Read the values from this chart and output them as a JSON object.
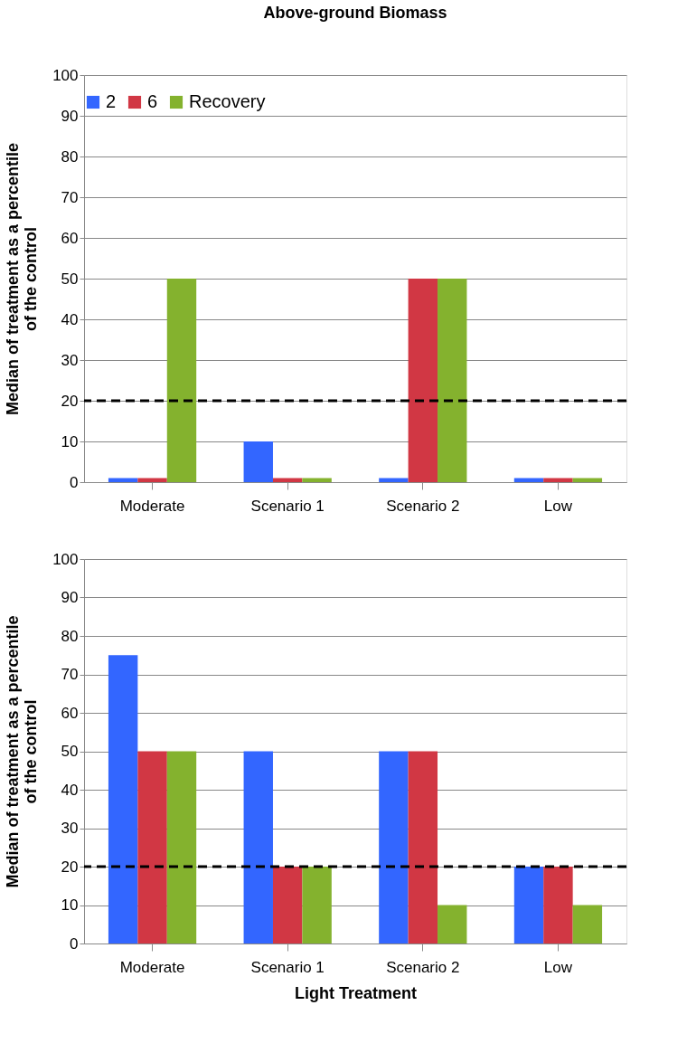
{
  "chart_data": [
    {
      "type": "bar",
      "title": "Above-ground Biomass",
      "ylabel": "Median of treatment as a percentile\nof the control",
      "categories": [
        "Moderate",
        "Scenario 1",
        "Scenario 2",
        "Low"
      ],
      "series": [
        {
          "name": "2",
          "color": "#3366ff",
          "values": [
            1,
            10,
            1,
            1
          ]
        },
        {
          "name": "6",
          "color": "#d13744",
          "values": [
            1,
            1,
            50,
            1
          ]
        },
        {
          "name": "Recovery",
          "color": "#84b22e",
          "values": [
            50,
            1,
            50,
            1
          ]
        }
      ],
      "ylim": [
        0,
        100
      ],
      "yticks": [
        0,
        10,
        20,
        30,
        40,
        50,
        60,
        70,
        80,
        90,
        100
      ],
      "grid": "y",
      "legend": "top",
      "ref_lines": [
        {
          "axis": "y",
          "value": 20,
          "color": "#000000",
          "line_style": "dashed"
        }
      ]
    },
    {
      "type": "bar",
      "xlabel": "Light Treatment",
      "ylabel": "Median of treatment as a percentile\nof the control",
      "categories": [
        "Moderate",
        "Scenario 1",
        "Scenario 2",
        "Low"
      ],
      "series": [
        {
          "color": "#3366ff",
          "values": [
            75,
            50,
            50,
            20
          ]
        },
        {
          "color": "#d13744",
          "values": [
            50,
            20,
            50,
            20
          ]
        },
        {
          "color": "#84b22e",
          "values": [
            50,
            20,
            10,
            10
          ]
        }
      ],
      "ylim": [
        0,
        100
      ],
      "yticks": [
        0,
        10,
        20,
        30,
        40,
        50,
        60,
        70,
        80,
        90,
        100
      ],
      "grid": "y",
      "ref_lines": [
        {
          "axis": "y",
          "value": 20,
          "color": "#000000",
          "line_style": "dashed"
        }
      ]
    }
  ]
}
